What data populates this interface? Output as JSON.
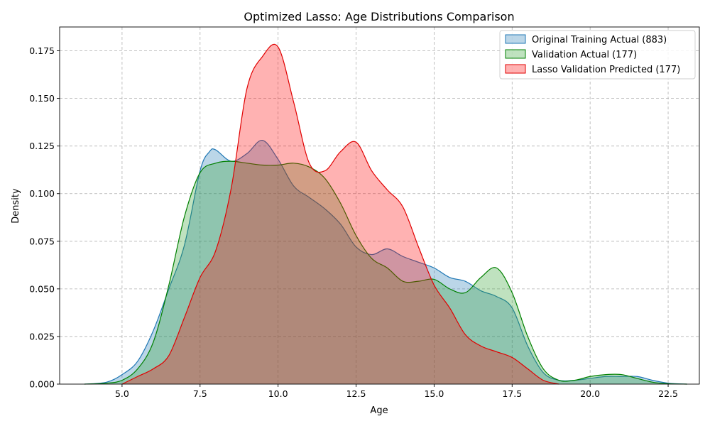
{
  "chart_data": {
    "type": "area",
    "title": "Optimized Lasso: Age Distributions Comparison",
    "xlabel": "Age",
    "ylabel": "Density",
    "xlim": [
      3.0,
      23.5
    ],
    "ylim": [
      0.0,
      0.1875
    ],
    "x_ticks": [
      5.0,
      7.5,
      10.0,
      12.5,
      15.0,
      17.5,
      20.0,
      22.5
    ],
    "x_tick_labels": [
      "5.0",
      "7.5",
      "10.0",
      "12.5",
      "15.0",
      "17.5",
      "20.0",
      "22.5"
    ],
    "y_ticks": [
      0.0,
      0.025,
      0.05,
      0.075,
      0.1,
      0.125,
      0.15,
      0.175
    ],
    "y_tick_labels": [
      "0.000",
      "0.025",
      "0.050",
      "0.075",
      "0.100",
      "0.125",
      "0.150",
      "0.175"
    ],
    "grid": true,
    "legend_position": "top-right",
    "series": [
      {
        "name": "Original Training Actual (883)",
        "fill": "#1f77b4",
        "stroke": "#1f77b4",
        "x": [
          3.8,
          4.5,
          5.0,
          5.5,
          6.0,
          6.5,
          7.0,
          7.5,
          7.8,
          8.0,
          8.5,
          9.0,
          9.5,
          10.0,
          10.5,
          11.0,
          11.5,
          12.0,
          12.5,
          13.0,
          13.5,
          14.0,
          14.5,
          15.0,
          15.5,
          16.0,
          16.5,
          17.0,
          17.5,
          18.0,
          18.5,
          19.0,
          19.5,
          20.0,
          20.5,
          21.0,
          21.5,
          22.0,
          22.5,
          23.1
        ],
        "y": [
          0.0,
          0.001,
          0.005,
          0.012,
          0.028,
          0.05,
          0.073,
          0.112,
          0.122,
          0.123,
          0.117,
          0.121,
          0.128,
          0.118,
          0.104,
          0.098,
          0.092,
          0.084,
          0.072,
          0.068,
          0.071,
          0.067,
          0.064,
          0.061,
          0.056,
          0.054,
          0.049,
          0.046,
          0.04,
          0.02,
          0.006,
          0.002,
          0.002,
          0.003,
          0.004,
          0.004,
          0.004,
          0.002,
          0.0005,
          0.0
        ]
      },
      {
        "name": "Validation Actual (177)",
        "fill": "#2ca02c",
        "stroke": "#008000",
        "x": [
          3.8,
          4.5,
          5.0,
          5.5,
          6.0,
          6.5,
          7.0,
          7.5,
          8.0,
          8.5,
          9.0,
          9.5,
          10.0,
          10.5,
          11.0,
          11.5,
          12.0,
          12.5,
          13.0,
          13.5,
          14.0,
          14.5,
          15.0,
          15.5,
          16.0,
          16.5,
          17.0,
          17.5,
          18.0,
          18.5,
          19.0,
          19.5,
          20.0,
          20.5,
          21.0,
          21.5,
          22.0,
          22.5,
          23.1
        ],
        "y": [
          0.0,
          0.0005,
          0.002,
          0.008,
          0.022,
          0.052,
          0.088,
          0.111,
          0.116,
          0.117,
          0.116,
          0.115,
          0.115,
          0.116,
          0.114,
          0.108,
          0.095,
          0.078,
          0.066,
          0.061,
          0.054,
          0.054,
          0.055,
          0.05,
          0.048,
          0.056,
          0.061,
          0.048,
          0.025,
          0.008,
          0.002,
          0.002,
          0.004,
          0.005,
          0.005,
          0.003,
          0.001,
          0.0002,
          0.0
        ]
      },
      {
        "name": "Lasso Validation Predicted (177)",
        "fill": "#ff0000",
        "stroke": "#e00000",
        "x": [
          5.0,
          5.5,
          6.0,
          6.5,
          7.0,
          7.5,
          8.0,
          8.5,
          9.0,
          9.5,
          10.0,
          10.5,
          11.0,
          11.5,
          12.0,
          12.5,
          13.0,
          13.5,
          14.0,
          14.5,
          15.0,
          15.5,
          16.0,
          16.5,
          17.0,
          17.5,
          18.0,
          18.5,
          19.0
        ],
        "y": [
          0.0,
          0.004,
          0.008,
          0.015,
          0.035,
          0.056,
          0.07,
          0.103,
          0.155,
          0.172,
          0.177,
          0.148,
          0.116,
          0.112,
          0.122,
          0.127,
          0.112,
          0.102,
          0.093,
          0.072,
          0.052,
          0.04,
          0.026,
          0.02,
          0.017,
          0.014,
          0.008,
          0.002,
          0.0
        ]
      }
    ]
  }
}
